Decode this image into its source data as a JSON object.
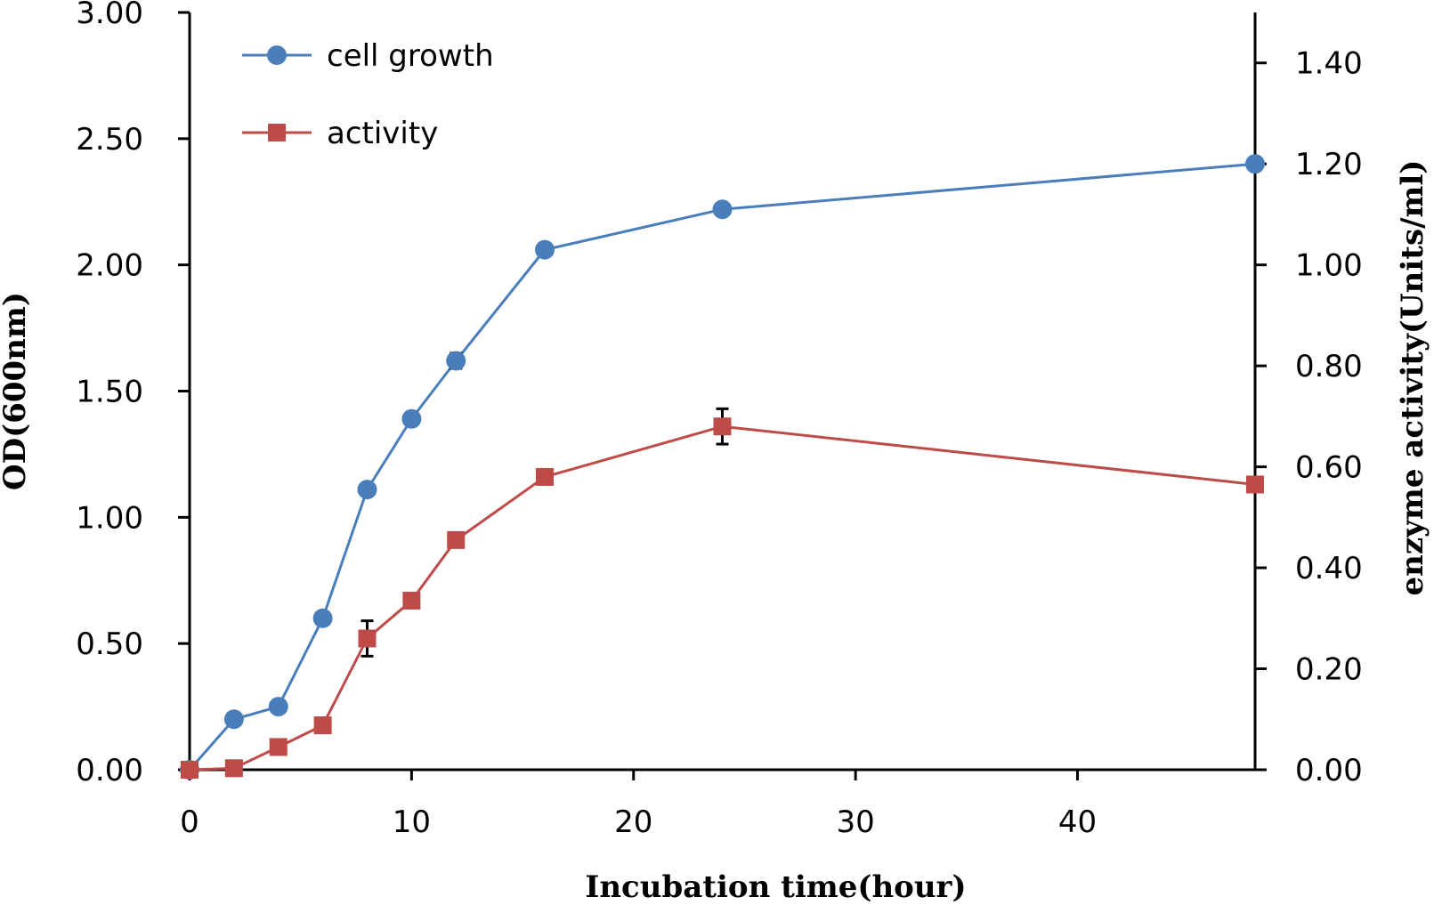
{
  "chart_data": {
    "type": "line",
    "title": "",
    "xlabel": "Incubation time(hour)",
    "ylabel_left": "OD(600nm)",
    "ylabel_right": "enzyme activity(Units/ml)",
    "xlim": [
      0,
      48
    ],
    "ylim_left": [
      0,
      3.0
    ],
    "ylim_right": [
      0,
      1.5
    ],
    "x_ticks": [
      0,
      10,
      20,
      30,
      40
    ],
    "x_tick_labels": [
      "0",
      "10",
      "20",
      "30",
      "40"
    ],
    "y_left_ticks": [
      0,
      0.5,
      1.0,
      1.5,
      2.0,
      2.5,
      3.0
    ],
    "y_left_tick_labels": [
      "0.00",
      "0.50",
      "1.00",
      "1.50",
      "2.00",
      "2.50",
      "3.00"
    ],
    "y_right_ticks": [
      0,
      0.2,
      0.4,
      0.6,
      0.8,
      1.0,
      1.2,
      1.4
    ],
    "y_right_tick_labels": [
      "0.00",
      "0.20",
      "0.40",
      "0.60",
      "0.80",
      "1.00",
      "1.20",
      "1.40"
    ],
    "grid": false,
    "legend_position": "top-left",
    "series": [
      {
        "name": "cell growth",
        "axis": "left",
        "color": "#4a7ebb",
        "marker": "circle",
        "x": [
          0,
          2,
          4,
          6,
          8,
          10,
          12,
          16,
          24,
          48
        ],
        "values": [
          0.0,
          0.2,
          0.25,
          0.6,
          1.11,
          1.39,
          1.62,
          2.06,
          2.22,
          2.4
        ],
        "error": [
          0,
          0,
          0,
          0,
          0,
          0,
          0.03,
          0,
          0.02,
          0
        ]
      },
      {
        "name": "activity",
        "axis": "right",
        "color": "#be4b48",
        "marker": "square",
        "x": [
          0,
          2,
          4,
          6,
          8,
          10,
          12,
          16,
          24,
          48
        ],
        "values": [
          0.0,
          0.003,
          0.045,
          0.088,
          0.26,
          0.335,
          0.455,
          0.58,
          0.68,
          0.565
        ],
        "error": [
          0,
          0,
          0,
          0,
          0.035,
          0,
          0,
          0,
          0.035,
          0
        ]
      }
    ]
  }
}
